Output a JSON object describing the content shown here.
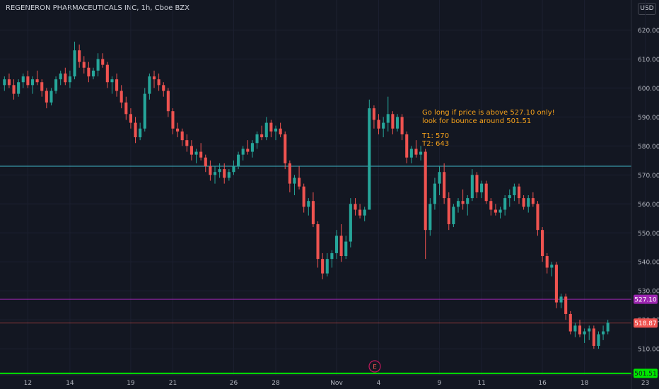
{
  "header": {
    "title": "REGENERON PHARMACEUTICALS INC, 1h, Cboe BZX",
    "currency": "USD"
  },
  "colors": {
    "background": "#131722",
    "grid": "#1c2030",
    "up": "#26a69a",
    "down": "#ef5350",
    "text": "#b2b5be",
    "annotation": "#f7a21b",
    "resistance_line": "#3fb6c6",
    "entry_line": "#9c27b0",
    "entry_label": "#9c27b0",
    "last_price": "#ef5350",
    "target_line": "#00e600",
    "target_label": "#00e600"
  },
  "chart_data": {
    "type": "candlestick",
    "y_axis": {
      "min": 501,
      "max": 625,
      "ticks": [
        620,
        610,
        600,
        590,
        580,
        570,
        560,
        550,
        540,
        530,
        520,
        510
      ],
      "tick_labels": [
        "620.00",
        "610.00",
        "600.00",
        "590.00",
        "580.00",
        "570.00",
        "560.00",
        "550.00",
        "540.00",
        "530.00",
        "520.00",
        "510.00"
      ]
    },
    "x_axis": {
      "labels": [
        "12",
        "14",
        "19",
        "21",
        "26",
        "28",
        "Nov",
        "4",
        "9",
        "11",
        "16",
        "18",
        "23"
      ],
      "label_index": [
        5,
        14,
        27,
        36,
        49,
        58,
        71,
        80,
        93,
        102,
        115,
        124,
        137
      ]
    },
    "candles_ohlc": [
      [
        601,
        604,
        599,
        603
      ],
      [
        603,
        605,
        600,
        601
      ],
      [
        601,
        603,
        596,
        598
      ],
      [
        598,
        603,
        597,
        602
      ],
      [
        602,
        605,
        600,
        604
      ],
      [
        604,
        606,
        600,
        601
      ],
      [
        601,
        604,
        598,
        603
      ],
      [
        603,
        606,
        601,
        602
      ],
      [
        602,
        603,
        597,
        599
      ],
      [
        599,
        600,
        593,
        595
      ],
      [
        595,
        600,
        594,
        599
      ],
      [
        599,
        604,
        598,
        603
      ],
      [
        603,
        606,
        601,
        605
      ],
      [
        605,
        607,
        601,
        602
      ],
      [
        602,
        606,
        600,
        604
      ],
      [
        604,
        616,
        603,
        613
      ],
      [
        613,
        615,
        607,
        609
      ],
      [
        609,
        611,
        605,
        607
      ],
      [
        607,
        609,
        602,
        604
      ],
      [
        604,
        607,
        603,
        606
      ],
      [
        606,
        612,
        604,
        610
      ],
      [
        610,
        612,
        607,
        608
      ],
      [
        608,
        609,
        600,
        602
      ],
      [
        602,
        604,
        598,
        603
      ],
      [
        603,
        605,
        597,
        599
      ],
      [
        599,
        601,
        593,
        595
      ],
      [
        595,
        597,
        589,
        591
      ],
      [
        591,
        593,
        586,
        588
      ],
      [
        588,
        590,
        581,
        583
      ],
      [
        583,
        588,
        582,
        586
      ],
      [
        586,
        600,
        585,
        598
      ],
      [
        598,
        605,
        596,
        604
      ],
      [
        604,
        606,
        600,
        603
      ],
      [
        603,
        605,
        599,
        601
      ],
      [
        601,
        602,
        597,
        599
      ],
      [
        599,
        600,
        590,
        592
      ],
      [
        592,
        593,
        584,
        586
      ],
      [
        586,
        588,
        583,
        585
      ],
      [
        585,
        586,
        580,
        582
      ],
      [
        582,
        584,
        578,
        580
      ],
      [
        580,
        582,
        575,
        577
      ],
      [
        577,
        579,
        574,
        578
      ],
      [
        578,
        581,
        575,
        576
      ],
      [
        576,
        577,
        571,
        573
      ],
      [
        573,
        575,
        568,
        570
      ],
      [
        570,
        573,
        567,
        571
      ],
      [
        571,
        574,
        569,
        572
      ],
      [
        572,
        574,
        567,
        569
      ],
      [
        569,
        572,
        568,
        571
      ],
      [
        571,
        575,
        570,
        573
      ],
      [
        573,
        578,
        572,
        577
      ],
      [
        577,
        580,
        575,
        579
      ],
      [
        579,
        582,
        577,
        578
      ],
      [
        578,
        582,
        576,
        581
      ],
      [
        581,
        585,
        579,
        584
      ],
      [
        584,
        587,
        582,
        583
      ],
      [
        583,
        590,
        582,
        588
      ],
      [
        588,
        589,
        583,
        585
      ],
      [
        585,
        587,
        582,
        586
      ],
      [
        586,
        588,
        583,
        584
      ],
      [
        584,
        585,
        572,
        574
      ],
      [
        574,
        575,
        564,
        567
      ],
      [
        567,
        570,
        563,
        569
      ],
      [
        569,
        573,
        565,
        566
      ],
      [
        566,
        567,
        557,
        559
      ],
      [
        559,
        562,
        556,
        561
      ],
      [
        561,
        564,
        552,
        553
      ],
      [
        553,
        554,
        538,
        541
      ],
      [
        541,
        543,
        534,
        536
      ],
      [
        536,
        543,
        535,
        541
      ],
      [
        541,
        544,
        538,
        543
      ],
      [
        543,
        551,
        541,
        549
      ],
      [
        549,
        553,
        540,
        542
      ],
      [
        542,
        549,
        541,
        547
      ],
      [
        547,
        562,
        545,
        560
      ],
      [
        560,
        562,
        556,
        558
      ],
      [
        558,
        560,
        555,
        556
      ],
      [
        556,
        559,
        554,
        558
      ],
      [
        558,
        596,
        577,
        593
      ],
      [
        593,
        594,
        586,
        589
      ],
      [
        589,
        591,
        584,
        586
      ],
      [
        586,
        590,
        583,
        588
      ],
      [
        588,
        597,
        585,
        591
      ],
      [
        591,
        592,
        584,
        586
      ],
      [
        586,
        591,
        585,
        590
      ],
      [
        590,
        591,
        582,
        584
      ],
      [
        584,
        585,
        574,
        576
      ],
      [
        576,
        580,
        574,
        579
      ],
      [
        579,
        582,
        576,
        577
      ],
      [
        577,
        580,
        575,
        578
      ],
      [
        578,
        579,
        541,
        551
      ],
      [
        551,
        562,
        549,
        560
      ],
      [
        560,
        569,
        558,
        567
      ],
      [
        567,
        573,
        563,
        571
      ],
      [
        571,
        574,
        560,
        562
      ],
      [
        562,
        564,
        551,
        553
      ],
      [
        553,
        560,
        552,
        559
      ],
      [
        559,
        562,
        557,
        561
      ],
      [
        561,
        565,
        558,
        560
      ],
      [
        560,
        563,
        556,
        562
      ],
      [
        562,
        572,
        561,
        570
      ],
      [
        570,
        571,
        562,
        564
      ],
      [
        564,
        568,
        562,
        567
      ],
      [
        567,
        568,
        560,
        561
      ],
      [
        561,
        562,
        556,
        558
      ],
      [
        558,
        560,
        556,
        557
      ],
      [
        557,
        559,
        555,
        558
      ],
      [
        558,
        563,
        556,
        562
      ],
      [
        562,
        565,
        559,
        563
      ],
      [
        563,
        567,
        561,
        566
      ],
      [
        566,
        567,
        560,
        562
      ],
      [
        562,
        563,
        558,
        559
      ],
      [
        559,
        563,
        557,
        562
      ],
      [
        562,
        564,
        559,
        560
      ],
      [
        560,
        561,
        549,
        551
      ],
      [
        551,
        552,
        540,
        542
      ],
      [
        542,
        543,
        536,
        538
      ],
      [
        538,
        540,
        535,
        539
      ],
      [
        539,
        540,
        524,
        526
      ],
      [
        526,
        529,
        524,
        528
      ],
      [
        528,
        529,
        520,
        522
      ],
      [
        522,
        523,
        515,
        516
      ],
      [
        516,
        519,
        514,
        518
      ],
      [
        518,
        520,
        514,
        515
      ],
      [
        515,
        517,
        512,
        516
      ],
      [
        516,
        518,
        513,
        517
      ],
      [
        517,
        518,
        510,
        511
      ],
      [
        511,
        516,
        510,
        515
      ],
      [
        515,
        518,
        513,
        516
      ],
      [
        516,
        520,
        515,
        519
      ]
    ],
    "levels": [
      {
        "value": 573,
        "label": ""
      },
      {
        "value": 527.1,
        "label": "527.10"
      },
      {
        "value": 518.87,
        "label": "518.87"
      },
      {
        "value": 501.51,
        "label": "501.51"
      }
    ],
    "annotations": {
      "note_line1": "Go long if price is above 527.10 only!",
      "note_line2": "look for bounce around 501.51",
      "target1": "T1: 570",
      "target2": "T2: 643"
    },
    "earnings_marker": "E",
    "grid": true
  }
}
